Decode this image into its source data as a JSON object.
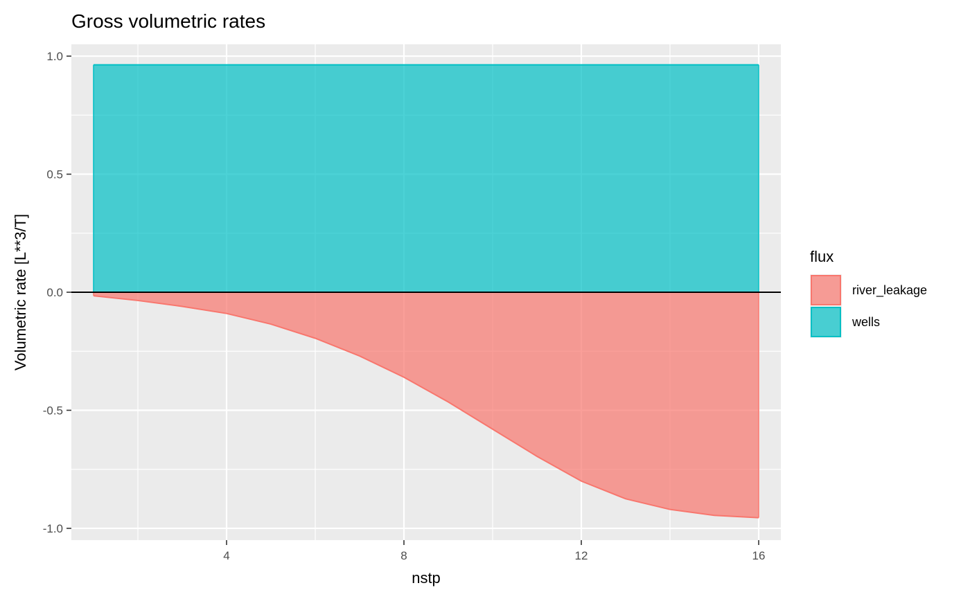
{
  "chart_data": {
    "type": "area",
    "title": "Gross volumetric rates",
    "xlabel": "nstp",
    "ylabel": "Volumetric rate [L**3/T]",
    "xlim": [
      0.5,
      16.5
    ],
    "ylim": [
      -1.05,
      1.05
    ],
    "x_ticks": [
      4,
      8,
      12,
      16
    ],
    "x_tick_labels": [
      "4",
      "8",
      "12",
      "16"
    ],
    "x_minor_ticks": [
      2,
      6,
      10,
      14
    ],
    "y_ticks": [
      -1.0,
      -0.5,
      0.0,
      0.5,
      1.0
    ],
    "y_tick_labels": [
      "-1.0",
      "-0.5",
      "0.0",
      "0.5",
      "1.0"
    ],
    "y_minor_ticks": [
      -0.75,
      -0.25,
      0.25,
      0.75
    ],
    "hline": 0,
    "legend": {
      "title": "flux",
      "position": "right",
      "entries": [
        "river_leakage",
        "wells"
      ]
    },
    "x": [
      1,
      2,
      3,
      4,
      5,
      6,
      7,
      8,
      9,
      10,
      11,
      12,
      13,
      14,
      15,
      16
    ],
    "series": [
      {
        "name": "river_leakage",
        "color": "#F8766D",
        "values": [
          -0.015,
          -0.035,
          -0.06,
          -0.09,
          -0.135,
          -0.195,
          -0.27,
          -0.36,
          -0.465,
          -0.58,
          -0.695,
          -0.8,
          -0.875,
          -0.92,
          -0.945,
          -0.955
        ]
      },
      {
        "name": "wells",
        "color": "#00BFC4",
        "values": [
          0.963,
          0.963,
          0.963,
          0.963,
          0.963,
          0.963,
          0.963,
          0.963,
          0.963,
          0.963,
          0.963,
          0.963,
          0.963,
          0.963,
          0.963,
          0.963
        ]
      }
    ]
  }
}
